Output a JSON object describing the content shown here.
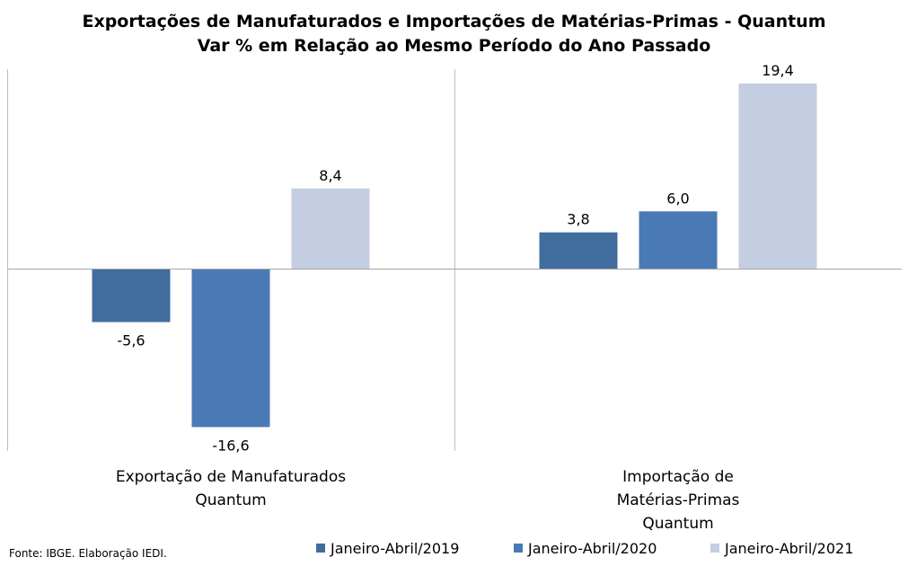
{
  "chart_data": {
    "type": "bar",
    "title": "Exportações de Manufaturados e Importações de Matérias-Primas - Quantum",
    "subtitle": "Var % em Relação ao Mesmo Período do Ano Passado",
    "categories": [
      [
        "Exportação de Manufaturados",
        "Quantum"
      ],
      [
        "Importação de",
        "Matérias-Primas",
        "Quantum"
      ]
    ],
    "series": [
      {
        "name": "Janeiro-Abril/2019",
        "values": [
          -5.6,
          3.8
        ],
        "labels": [
          "-5,6",
          "3,8"
        ],
        "color": "#416c9e"
      },
      {
        "name": "Janeiro-Abril/2020",
        "values": [
          -16.6,
          6.0
        ],
        "labels": [
          "-16,6",
          "6,0"
        ],
        "color": "#4a7ab6"
      },
      {
        "name": "Janeiro-Abril/2021",
        "values": [
          8.4,
          19.4
        ],
        "labels": [
          "8,4",
          "19,4"
        ],
        "color": "#c4cde2"
      }
    ],
    "ylim": [
      -18.5,
      20
    ],
    "grid": false,
    "legend_position": "bottom"
  },
  "footer": {
    "source": "Fonte: IBGE. Elaboração IEDI."
  }
}
